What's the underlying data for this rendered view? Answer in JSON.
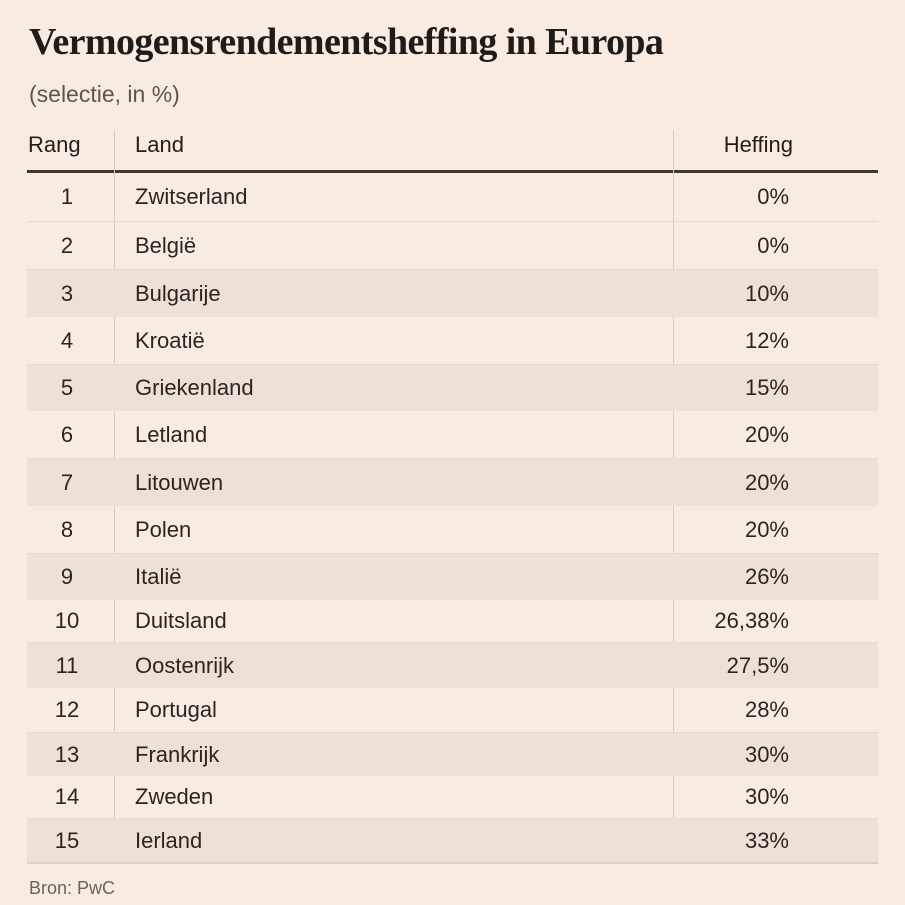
{
  "title": "Vermogensrendementsheffing in Europa",
  "subtitle": "(selectie, in %)",
  "table": {
    "headers": {
      "rank": "Rang",
      "country": "Land",
      "levy": "Heffing"
    },
    "rows": [
      {
        "rank": "1",
        "country": "Zwitserland",
        "levy": "0%"
      },
      {
        "rank": "2",
        "country": "België",
        "levy": "0%"
      },
      {
        "rank": "3",
        "country": "Bulgarije",
        "levy": "10%"
      },
      {
        "rank": "4",
        "country": "Kroatië",
        "levy": "12%"
      },
      {
        "rank": "5",
        "country": "Griekenland",
        "levy": "15%"
      },
      {
        "rank": "6",
        "country": "Letland",
        "levy": "20%"
      },
      {
        "rank": "7",
        "country": "Litouwen",
        "levy": "20%"
      },
      {
        "rank": "8",
        "country": "Polen",
        "levy": "20%"
      },
      {
        "rank": "9",
        "country": "Italië",
        "levy": "26%"
      },
      {
        "rank": "10",
        "country": "Duitsland",
        "levy": "26,38%"
      },
      {
        "rank": "11",
        "country": "Oostenrijk",
        "levy": "27,5%"
      },
      {
        "rank": "12",
        "country": "Portugal",
        "levy": "28%"
      },
      {
        "rank": "13",
        "country": "Frankrijk",
        "levy": "30%"
      },
      {
        "rank": "14",
        "country": "Zweden",
        "levy": "30%"
      },
      {
        "rank": "15",
        "country": "Ierland",
        "levy": "33%"
      }
    ]
  },
  "source": "Bron: PwC",
  "colors": {
    "background": "#f8ebe2",
    "shaded_row": "#ede0d6",
    "text": "#2b2522",
    "rule": "#3e3633"
  }
}
